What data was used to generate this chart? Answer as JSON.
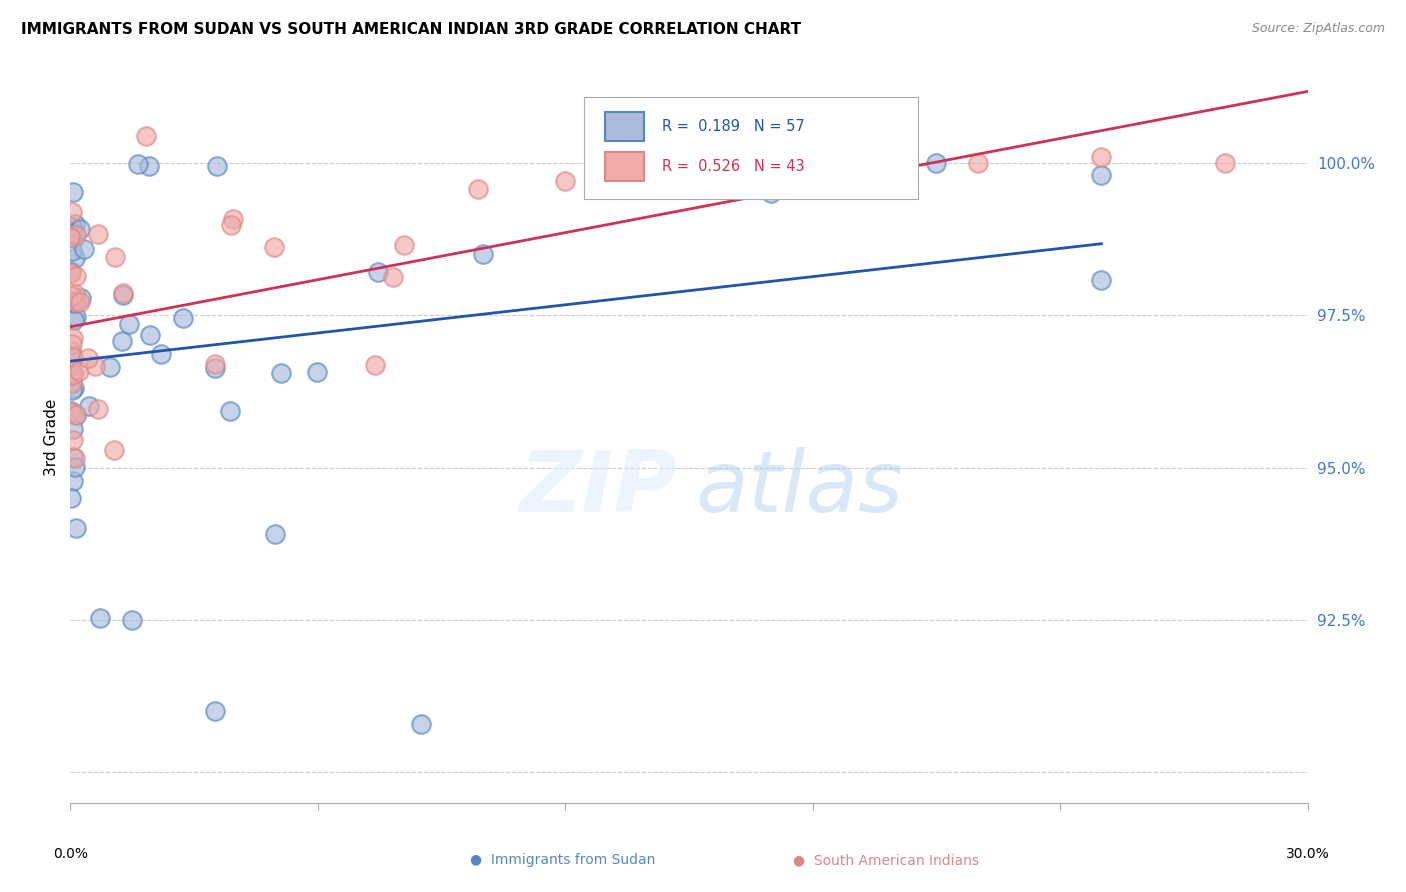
{
  "title": "IMMIGRANTS FROM SUDAN VS SOUTH AMERICAN INDIAN 3RD GRADE CORRELATION CHART",
  "source": "Source: ZipAtlas.com",
  "ylabel": "3rd Grade",
  "xlim": [
    0.0,
    30.0
  ],
  "ylim": [
    89.5,
    101.5
  ],
  "y_ticks": [
    90.0,
    92.5,
    95.0,
    97.5,
    100.0
  ],
  "y_tick_labels": [
    "",
    "92.5%",
    "95.0%",
    "97.5%",
    "100.0%"
  ],
  "blue_face_color": "#aabbdd",
  "blue_edge_color": "#5588bb",
  "blue_line_color": "#2255aa",
  "pink_face_color": "#f0aaaa",
  "pink_edge_color": "#dd8888",
  "pink_line_color": "#cc3355",
  "r_sudan": 0.189,
  "n_sudan": 57,
  "r_indian": 0.526,
  "n_indian": 43,
  "legend_label1": "Immigrants from Sudan",
  "legend_label2": "South American Indians",
  "grid_color": "#cccccc",
  "title_fontsize": 11,
  "source_fontsize": 9,
  "tick_label_color": "#4477cc"
}
